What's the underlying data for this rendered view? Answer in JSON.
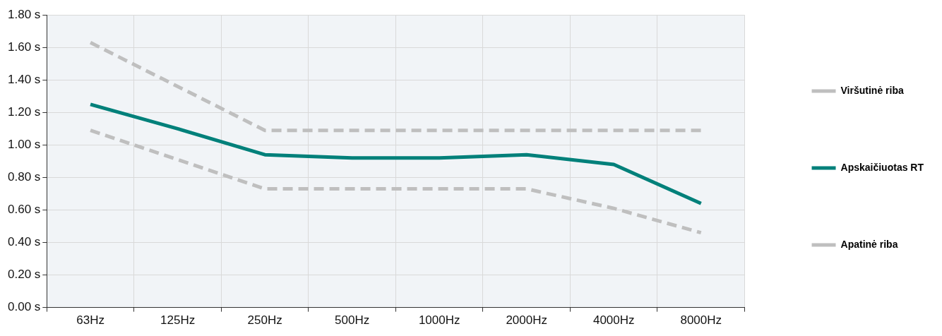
{
  "chart_data": {
    "type": "line",
    "categories": [
      "63Hz",
      "125Hz",
      "250Hz",
      "500Hz",
      "1000Hz",
      "2000Hz",
      "4000Hz",
      "8000Hz"
    ],
    "series": [
      {
        "name": "Viršutinė riba",
        "color": "#bfbfbf",
        "line_style": "dashed",
        "values": [
          1.63,
          1.36,
          1.09,
          1.09,
          1.09,
          1.09,
          1.09,
          1.09
        ]
      },
      {
        "name": "Apskaičiuotas RT",
        "color": "#00807a",
        "line_style": "solid",
        "values": [
          1.25,
          1.1,
          0.94,
          0.92,
          0.92,
          0.94,
          0.88,
          0.64
        ]
      },
      {
        "name": "Apatinė riba",
        "color": "#bfbfbf",
        "line_style": "dashed",
        "values": [
          1.09,
          0.91,
          0.73,
          0.73,
          0.73,
          0.73,
          0.61,
          0.46
        ]
      }
    ],
    "ylim": [
      0,
      1.8
    ],
    "yticks": [
      {
        "value": 0,
        "label": "0.00 s"
      },
      {
        "value": 0.2,
        "label": "0.20 s"
      },
      {
        "value": 0.4,
        "label": "0.40 s"
      },
      {
        "value": 0.6,
        "label": "0.60 s"
      },
      {
        "value": 0.8,
        "label": "0.80 s"
      },
      {
        "value": 1,
        "label": "1.00 s"
      },
      {
        "value": 1.2,
        "label": "1.20 s"
      },
      {
        "value": 1.4,
        "label": "1.40 s"
      },
      {
        "value": 1.6,
        "label": "1.60 s"
      },
      {
        "value": 1.8,
        "label": "1.80 s"
      }
    ],
    "grid": true,
    "legend": "right",
    "marker": "none"
  }
}
